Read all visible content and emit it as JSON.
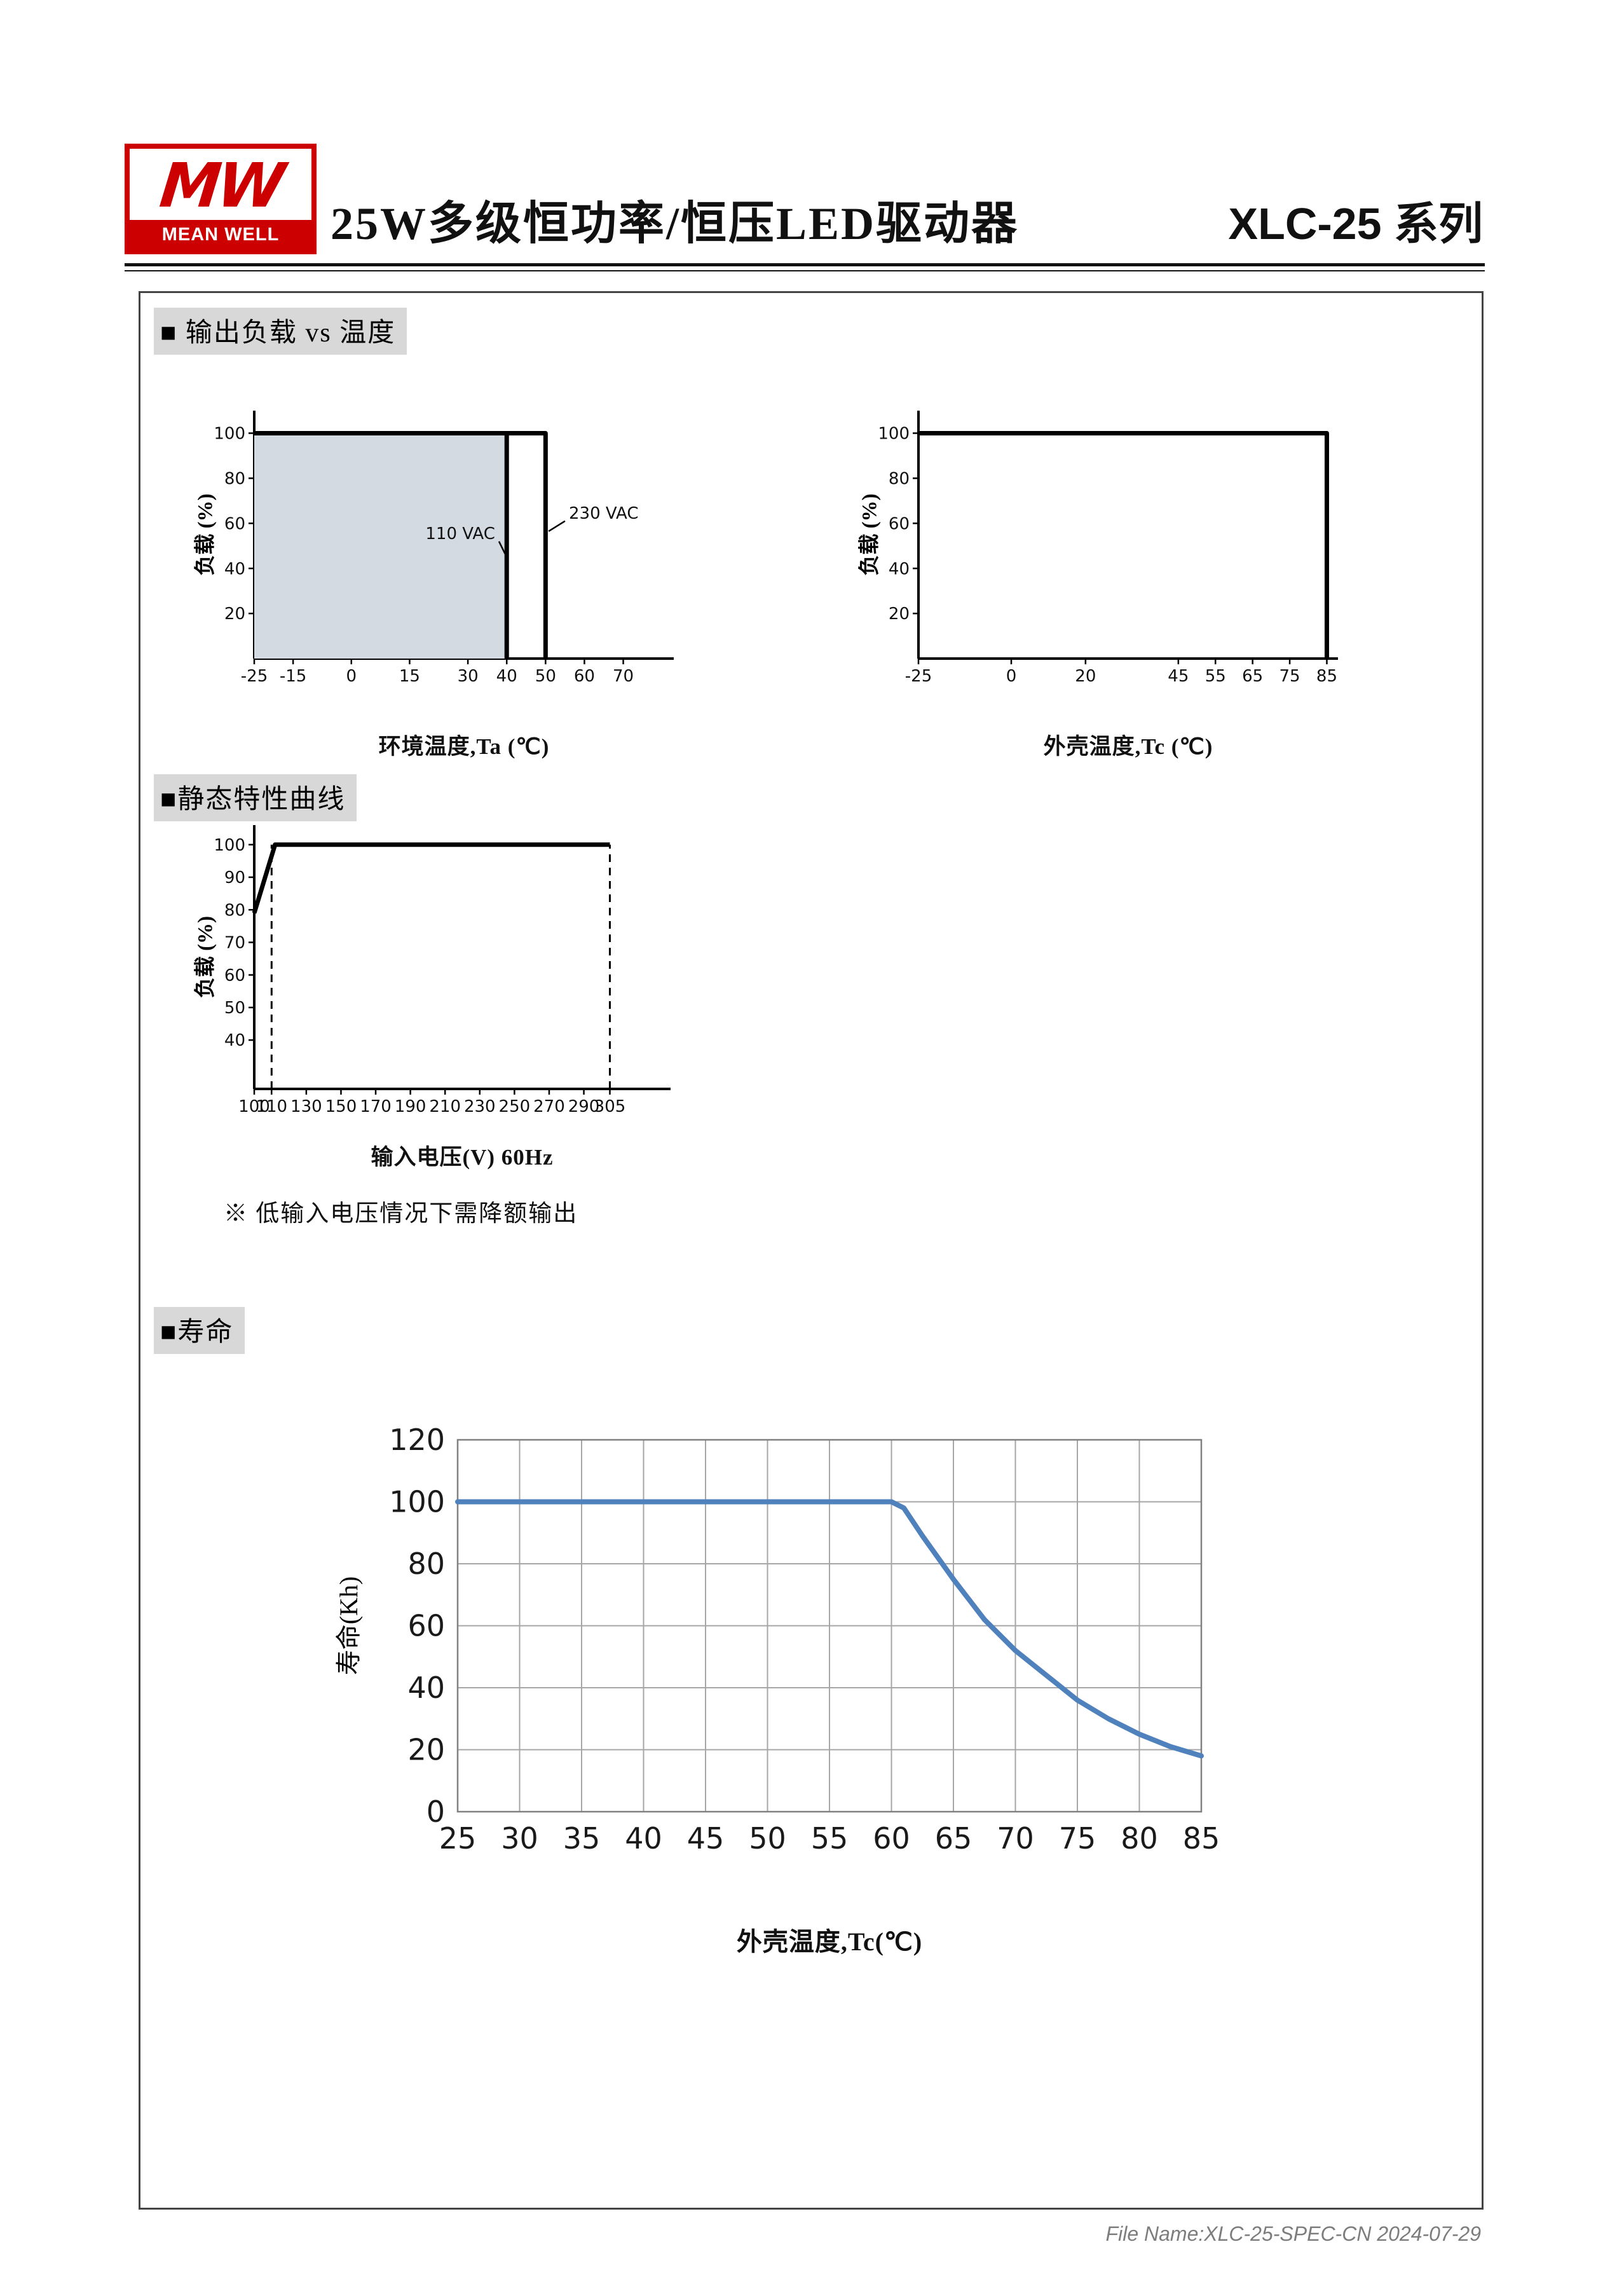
{
  "header": {
    "logo_mark": "MW",
    "logo_name": "MEAN WELL",
    "title": "25W多级恒功率/恒压LED驱动器",
    "series": "XLC-25 系列"
  },
  "sections": {
    "derating": {
      "heading": "■ 输出负载 vs 温度"
    },
    "static": {
      "heading": "■静态特性曲线",
      "note": "※ 低输入电压情况下需降额输出"
    },
    "life": {
      "heading": "■寿命"
    }
  },
  "footer": {
    "text": "File Name:XLC-25-SPEC-CN  2024-07-29"
  },
  "colors": {
    "brand_red": "#cc0000",
    "life_line": "#4f81bd",
    "shade": "#d4dae2"
  },
  "chart_data": [
    {
      "id": "load-vs-ambient-temperature",
      "type": "line",
      "xlabel": "环境温度,Ta (℃)",
      "ylabel": "负载 (%)",
      "xlim": [
        -25,
        83
      ],
      "ylim": [
        0,
        110
      ],
      "x_ticks": [
        -25,
        -15,
        0,
        15,
        30,
        40,
        50,
        60,
        70
      ],
      "y_ticks": [
        20,
        40,
        60,
        80,
        100
      ],
      "line_color": "#000000",
      "series": [
        {
          "name": "110 VAC",
          "points": [
            [
              -25,
              100
            ],
            [
              40,
              100
            ],
            [
              40,
              0
            ]
          ],
          "fill": "#d4dae2"
        },
        {
          "name": "230 VAC",
          "points": [
            [
              -25,
              100
            ],
            [
              50,
              100
            ],
            [
              50,
              0
            ]
          ]
        }
      ],
      "annotations": [
        {
          "text": "110 VAC",
          "x": 37,
          "y": 53,
          "anchor": "end",
          "leader": [
            [
              38,
              52
            ],
            [
              40,
              45
            ]
          ]
        },
        {
          "text": "230 VAC",
          "x": 56,
          "y": 62,
          "anchor": "start",
          "leader": [
            [
              55,
              61
            ],
            [
              50.8,
              56.5
            ]
          ]
        }
      ]
    },
    {
      "id": "load-vs-case-temperature",
      "type": "line",
      "xlabel": "外壳温度,Tc (℃)",
      "ylabel": "负载 (%)",
      "xlim": [
        -25,
        88
      ],
      "ylim": [
        0,
        110
      ],
      "x_ticks": [
        -25,
        0,
        20,
        45,
        55,
        65,
        75,
        85
      ],
      "y_ticks": [
        20,
        40,
        60,
        80,
        100
      ],
      "line_color": "#000000",
      "series": [
        {
          "name": "load",
          "points": [
            [
              -25,
              100
            ],
            [
              85,
              100
            ],
            [
              85,
              0
            ]
          ]
        }
      ]
    },
    {
      "id": "static-characteristic-curve",
      "type": "line",
      "xlabel": "输入电压(V) 60Hz",
      "ylabel": "负载 (%)",
      "xlim": [
        100,
        340
      ],
      "ylim": [
        25,
        106
      ],
      "x_ticks": [
        100,
        110,
        130,
        150,
        170,
        190,
        210,
        230,
        250,
        270,
        290,
        305
      ],
      "y_ticks": [
        40,
        50,
        60,
        70,
        80,
        90,
        100
      ],
      "line_color": "#000000",
      "dashed_x": [
        {
          "x": 110,
          "y0": 25,
          "y1": 100
        },
        {
          "x": 305,
          "y0": 25,
          "y1": 100
        }
      ],
      "series": [
        {
          "name": "load",
          "points": [
            [
              100,
              79
            ],
            [
              112,
              100
            ],
            [
              305,
              100
            ]
          ]
        }
      ]
    },
    {
      "id": "lifetime-vs-case-temperature",
      "type": "line",
      "xlabel": "外壳温度,Tc(℃)",
      "ylabel": "寿命(Kh)",
      "xlim": [
        25,
        85
      ],
      "ylim": [
        0,
        120
      ],
      "x_ticks": [
        25,
        30,
        35,
        40,
        45,
        50,
        55,
        60,
        65,
        70,
        75,
        80,
        85
      ],
      "y_ticks": [
        0,
        20,
        40,
        60,
        80,
        100,
        120
      ],
      "grid": true,
      "line_color": "#4f81bd",
      "series": [
        {
          "name": "寿命",
          "points": [
            [
              25,
              100
            ],
            [
              60,
              100
            ],
            [
              61,
              98
            ],
            [
              62.5,
              89
            ],
            [
              65,
              75
            ],
            [
              67.5,
              62
            ],
            [
              70,
              52
            ],
            [
              72.5,
              44
            ],
            [
              75,
              36
            ],
            [
              77.5,
              30
            ],
            [
              80,
              25
            ],
            [
              82.5,
              21
            ],
            [
              85,
              18
            ]
          ]
        }
      ]
    }
  ]
}
